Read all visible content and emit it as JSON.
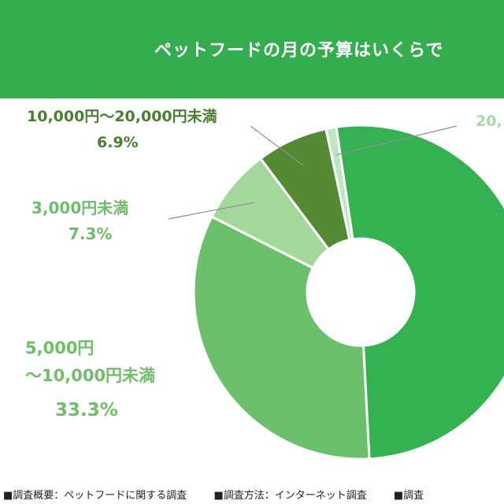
{
  "header": {
    "title": "ペットフードの月の予算はいくらで"
  },
  "chart_data": {
    "type": "pie",
    "slices": [
      {
        "label_lines": [
          "5,000円",
          "〜10,000円未満"
        ],
        "value": 33.3,
        "pct_text": "33.3%",
        "color": "#6cc06c"
      },
      {
        "label_lines": [
          "3,000円未満"
        ],
        "value": 7.3,
        "pct_text": "7.3%",
        "color": "#a2d89a"
      },
      {
        "label_lines": [
          "10,000円〜20,000円未満"
        ],
        "value": 6.9,
        "pct_text": "6.9%",
        "color": "#558a34"
      },
      {
        "label_lines": [
          "20,"
        ],
        "value": 1.0,
        "pct_text": "",
        "color": "#bfe6c3"
      },
      {
        "label_lines": [],
        "value": 51.5,
        "pct_text": "",
        "color": "#34b151"
      }
    ],
    "colors": {
      "header": "#34ad4e",
      "label_dark": "#4a7f32",
      "label_mid": "#6fbe6a",
      "label_light": "#a6dba8"
    }
  },
  "footer": {
    "items": [
      "■調査概要：ペットフードに関する調査",
      "■調査方法：インターネット調査",
      "■調査"
    ]
  }
}
